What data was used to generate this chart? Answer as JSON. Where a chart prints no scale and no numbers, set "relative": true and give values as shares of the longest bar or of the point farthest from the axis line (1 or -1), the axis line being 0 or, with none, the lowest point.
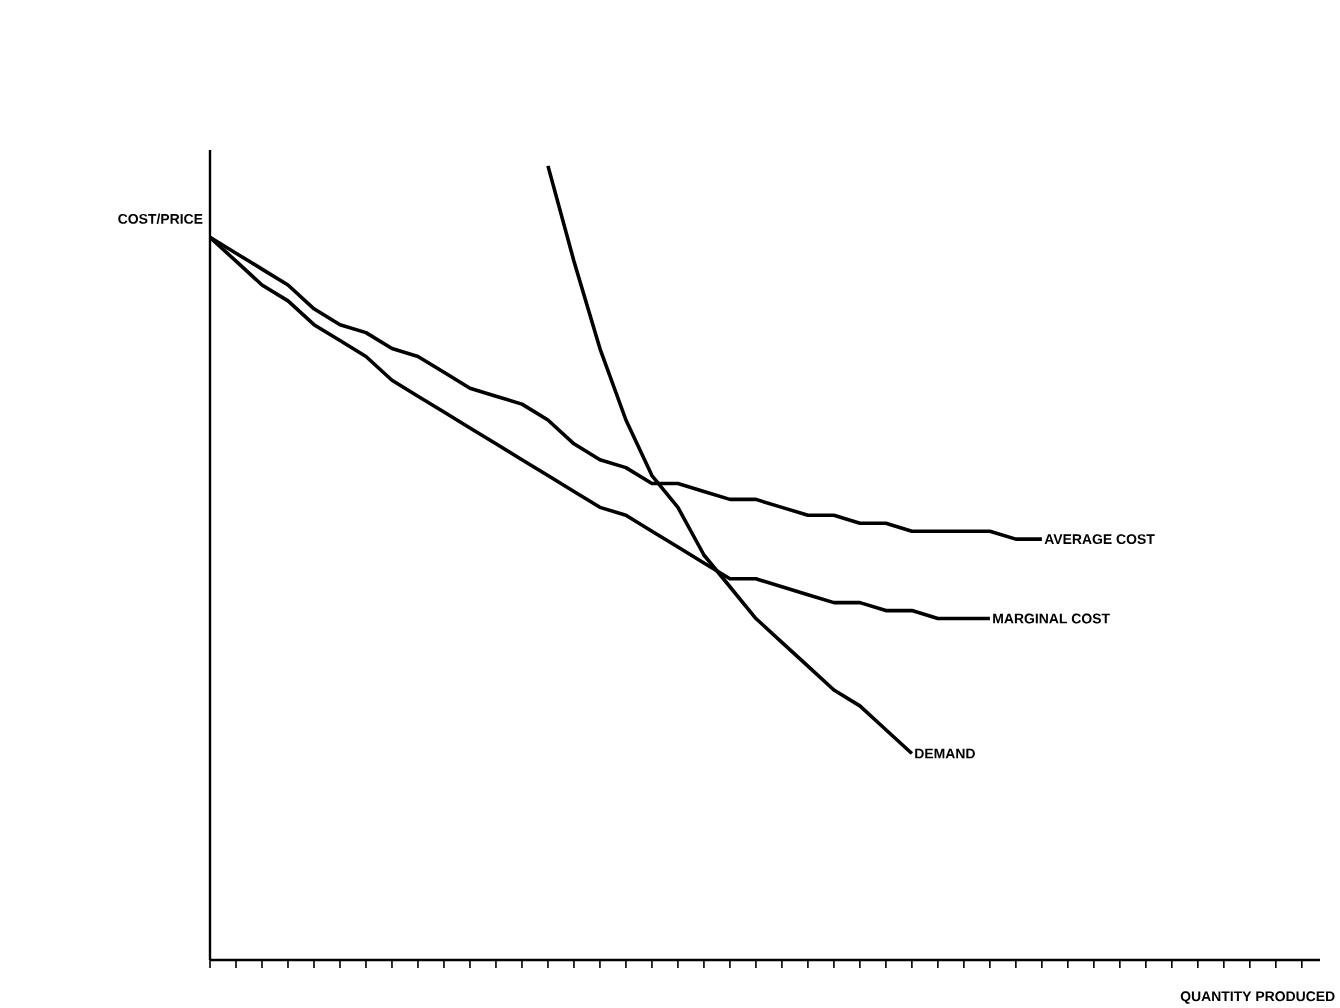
{
  "chart_data": {
    "type": "line",
    "relative": true,
    "ylabel": "COST/PRICE",
    "xlabel": "QUANTITY PRODUCED",
    "categories": [
      null,
      null,
      null,
      null,
      null,
      null,
      null,
      null,
      null,
      null,
      null,
      null,
      null,
      null,
      null,
      null,
      null,
      null,
      null,
      null,
      null,
      null,
      null,
      null,
      null,
      null,
      null,
      null,
      null,
      null,
      null,
      null,
      null,
      null,
      null,
      null,
      null,
      null,
      null,
      null,
      null,
      null,
      null
    ],
    "series": [
      {
        "name": "AVERAGE COST",
        "color": "#000000",
        "values": [
          0.91,
          0.89,
          0.87,
          0.85,
          0.82,
          0.8,
          0.79,
          0.77,
          0.76,
          0.74,
          0.72,
          0.71,
          0.7,
          0.68,
          0.65,
          0.63,
          0.62,
          0.6,
          0.6,
          0.59,
          0.58,
          0.58,
          0.57,
          0.56,
          0.56,
          0.55,
          0.55,
          0.54,
          0.54,
          0.54,
          0.54,
          0.53,
          0.53,
          null,
          null,
          null,
          null,
          null,
          null,
          null,
          null,
          null,
          null
        ]
      },
      {
        "name": "MARGINAL COST",
        "color": "#000000",
        "values": [
          0.91,
          0.88,
          0.85,
          0.83,
          0.8,
          0.78,
          0.76,
          0.73,
          0.71,
          0.69,
          0.67,
          0.65,
          0.63,
          0.61,
          0.59,
          0.57,
          0.56,
          0.54,
          0.52,
          0.5,
          0.48,
          0.48,
          0.47,
          0.46,
          0.45,
          0.45,
          0.44,
          0.44,
          0.43,
          0.43,
          0.43,
          null,
          null,
          null,
          null,
          null,
          null,
          null,
          null,
          null,
          null,
          null,
          null
        ]
      },
      {
        "name": "DEMAND",
        "color": "#000000",
        "values": [
          null,
          null,
          null,
          null,
          null,
          null,
          null,
          null,
          null,
          null,
          null,
          null,
          null,
          1.0,
          0.88,
          0.77,
          0.68,
          0.61,
          0.57,
          0.51,
          0.47,
          0.43,
          0.4,
          0.37,
          0.34,
          0.32,
          0.29,
          0.26,
          null,
          null,
          null,
          null,
          null,
          null,
          null,
          null,
          null,
          null,
          null,
          null,
          null,
          null,
          null
        ]
      }
    ]
  }
}
